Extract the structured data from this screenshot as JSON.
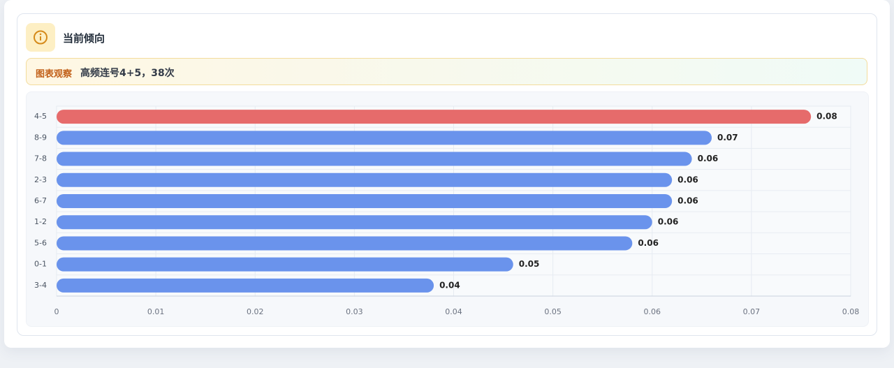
{
  "header": {
    "title": "当前倾向"
  },
  "observation": {
    "label": "图表观察",
    "text": "高频连号4+5，38次"
  },
  "chart_data": {
    "type": "bar",
    "orientation": "horizontal",
    "categories": [
      "4-5",
      "8-9",
      "7-8",
      "2-3",
      "6-7",
      "1-2",
      "5-6",
      "0-1",
      "3-4"
    ],
    "values": [
      0.076,
      0.066,
      0.064,
      0.062,
      0.062,
      0.06,
      0.058,
      0.046,
      0.038
    ],
    "value_labels": [
      "0.08",
      "0.07",
      "0.06",
      "0.06",
      "0.06",
      "0.06",
      "0.06",
      "0.05",
      "0.04"
    ],
    "colors": [
      "#e66b6b",
      "#6a93ec",
      "#6a93ec",
      "#6a93ec",
      "#6a93ec",
      "#6a93ec",
      "#6a93ec",
      "#6a93ec",
      "#6a93ec"
    ],
    "xlim": [
      0,
      0.08
    ],
    "xticks": [
      0,
      0.01,
      0.02,
      0.03,
      0.04,
      0.05,
      0.06,
      0.07,
      0.08
    ],
    "grid": true
  }
}
